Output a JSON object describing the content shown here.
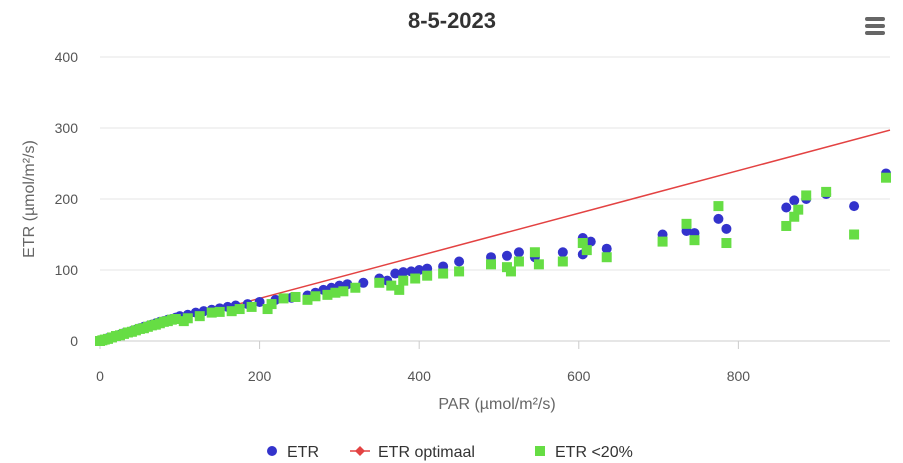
{
  "chart_data": {
    "type": "scatter",
    "title": "8-5-2023",
    "xlabel": "PAR (µmol/m²/s)",
    "ylabel": "ETR (µmol/m²/s)",
    "xlim": [
      0,
      990
    ],
    "ylim": [
      0,
      400
    ],
    "x_ticks": [
      0,
      200,
      400,
      600,
      800
    ],
    "y_ticks": [
      0,
      100,
      200,
      300,
      400
    ],
    "grid": "horizontal",
    "legend_position": "bottom",
    "series": [
      {
        "name": "ETR",
        "marker": "circle",
        "color": "#3333cc",
        "points": [
          [
            0,
            0
          ],
          [
            3,
            1
          ],
          [
            6,
            2
          ],
          [
            10,
            4
          ],
          [
            15,
            5
          ],
          [
            20,
            7
          ],
          [
            25,
            9
          ],
          [
            30,
            11
          ],
          [
            35,
            12
          ],
          [
            40,
            14
          ],
          [
            45,
            16
          ],
          [
            50,
            18
          ],
          [
            55,
            20
          ],
          [
            60,
            21
          ],
          [
            65,
            23
          ],
          [
            70,
            25
          ],
          [
            75,
            27
          ],
          [
            80,
            28
          ],
          [
            85,
            30
          ],
          [
            90,
            31
          ],
          [
            95,
            33
          ],
          [
            100,
            35
          ],
          [
            110,
            37
          ],
          [
            120,
            40
          ],
          [
            130,
            42
          ],
          [
            140,
            44
          ],
          [
            150,
            46
          ],
          [
            160,
            48
          ],
          [
            170,
            50
          ],
          [
            185,
            52
          ],
          [
            200,
            55
          ],
          [
            220,
            58
          ],
          [
            240,
            61
          ],
          [
            260,
            64
          ],
          [
            270,
            68
          ],
          [
            280,
            72
          ],
          [
            290,
            75
          ],
          [
            300,
            78
          ],
          [
            310,
            80
          ],
          [
            330,
            82
          ],
          [
            350,
            88
          ],
          [
            360,
            85
          ],
          [
            370,
            95
          ],
          [
            380,
            97
          ],
          [
            390,
            98
          ],
          [
            400,
            100
          ],
          [
            410,
            102
          ],
          [
            430,
            105
          ],
          [
            450,
            112
          ],
          [
            490,
            118
          ],
          [
            510,
            120
          ],
          [
            525,
            125
          ],
          [
            545,
            118
          ],
          [
            580,
            125
          ],
          [
            605,
            145
          ],
          [
            605,
            122
          ],
          [
            615,
            140
          ],
          [
            635,
            130
          ],
          [
            705,
            150
          ],
          [
            735,
            155
          ],
          [
            745,
            152
          ],
          [
            775,
            172
          ],
          [
            785,
            158
          ],
          [
            860,
            188
          ],
          [
            870,
            198
          ],
          [
            885,
            200
          ],
          [
            910,
            207
          ],
          [
            945,
            190
          ],
          [
            985,
            236
          ]
        ]
      },
      {
        "name": "ETR optimaal",
        "marker": "diamond-line",
        "color": "#e34242",
        "points": [
          [
            0,
            0
          ],
          [
            990,
            297
          ]
        ]
      },
      {
        "name": "ETR <20%",
        "marker": "square",
        "color": "#66dd44",
        "points": [
          [
            0,
            0
          ],
          [
            3,
            1
          ],
          [
            6,
            2
          ],
          [
            10,
            3
          ],
          [
            15,
            5
          ],
          [
            20,
            7
          ],
          [
            25,
            8
          ],
          [
            30,
            10
          ],
          [
            35,
            12
          ],
          [
            40,
            13
          ],
          [
            45,
            15
          ],
          [
            50,
            17
          ],
          [
            55,
            18
          ],
          [
            60,
            20
          ],
          [
            65,
            22
          ],
          [
            70,
            23
          ],
          [
            75,
            25
          ],
          [
            80,
            27
          ],
          [
            85,
            28
          ],
          [
            90,
            30
          ],
          [
            95,
            31
          ],
          [
            105,
            28
          ],
          [
            110,
            32
          ],
          [
            125,
            35
          ],
          [
            140,
            40
          ],
          [
            150,
            41
          ],
          [
            165,
            42
          ],
          [
            175,
            45
          ],
          [
            190,
            48
          ],
          [
            210,
            45
          ],
          [
            215,
            52
          ],
          [
            230,
            60
          ],
          [
            245,
            62
          ],
          [
            260,
            58
          ],
          [
            270,
            63
          ],
          [
            285,
            65
          ],
          [
            295,
            68
          ],
          [
            305,
            70
          ],
          [
            320,
            75
          ],
          [
            350,
            82
          ],
          [
            365,
            78
          ],
          [
            375,
            72
          ],
          [
            380,
            85
          ],
          [
            395,
            88
          ],
          [
            410,
            92
          ],
          [
            430,
            95
          ],
          [
            450,
            98
          ],
          [
            490,
            108
          ],
          [
            510,
            104
          ],
          [
            515,
            98
          ],
          [
            525,
            112
          ],
          [
            545,
            125
          ],
          [
            550,
            108
          ],
          [
            580,
            112
          ],
          [
            605,
            138
          ],
          [
            610,
            128
          ],
          [
            635,
            118
          ],
          [
            705,
            140
          ],
          [
            735,
            165
          ],
          [
            745,
            142
          ],
          [
            775,
            190
          ],
          [
            785,
            138
          ],
          [
            860,
            162
          ],
          [
            870,
            175
          ],
          [
            875,
            185
          ],
          [
            885,
            205
          ],
          [
            910,
            210
          ],
          [
            945,
            150
          ],
          [
            985,
            230
          ]
        ]
      }
    ]
  }
}
